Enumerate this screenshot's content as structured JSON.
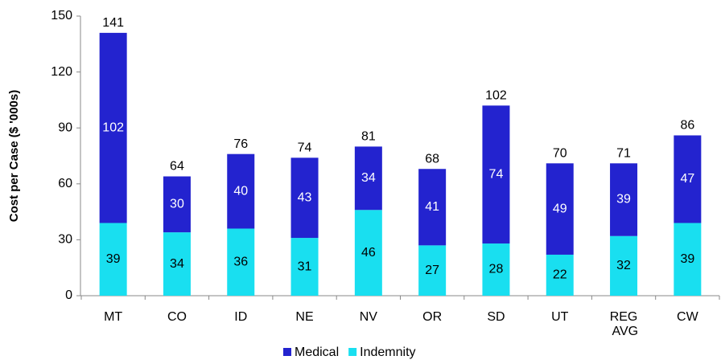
{
  "chart_data": {
    "type": "stacked_bar",
    "y_label": "Cost per Case ($ '000s)",
    "categories": [
      "MT",
      "CO",
      "ID",
      "NE",
      "NV",
      "OR",
      "SD",
      "UT",
      "REG AVG",
      "CW"
    ],
    "series": [
      {
        "name": "Indemnity",
        "color": "#19dff0",
        "label_color": "#000000",
        "values": [
          39,
          34,
          36,
          31,
          46,
          27,
          28,
          22,
          32,
          39
        ]
      },
      {
        "name": "Medical",
        "color": "#2323cf",
        "label_color": "#ffffff",
        "values": [
          102,
          30,
          40,
          43,
          34,
          41,
          74,
          49,
          39,
          47
        ]
      }
    ],
    "totals": [
      141,
      64,
      76,
      74,
      81,
      68,
      102,
      70,
      71,
      86
    ],
    "legend_order": [
      1,
      0
    ],
    "ylim": [
      0,
      150
    ],
    "yticks": [
      0,
      30,
      60,
      90,
      120,
      150
    ]
  }
}
